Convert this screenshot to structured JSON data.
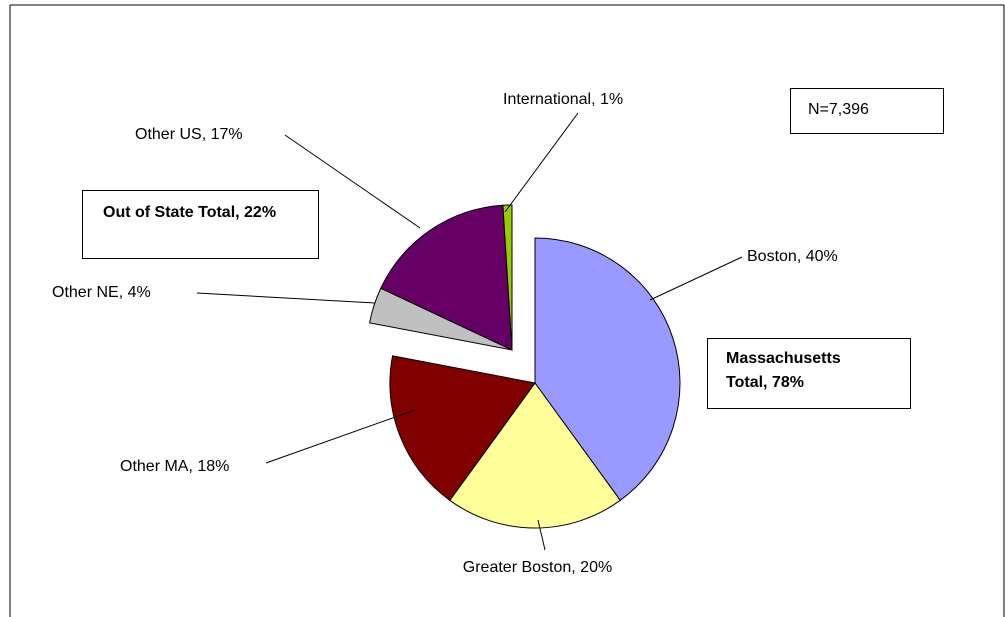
{
  "chart_data": {
    "type": "pie",
    "value_labels": [
      "Boston, 40%",
      "Greater Boston, 20%",
      "Other MA, 18%",
      "Other NE, 4%",
      "Other US, 17%",
      "International, 1%"
    ],
    "values": [
      40,
      20,
      18,
      4,
      17,
      1
    ],
    "colors": [
      "#9999ff",
      "#ffff99",
      "#800000",
      "#c0c0c0",
      "#660066",
      "#99cc00"
    ],
    "exploded": [
      false,
      false,
      false,
      true,
      true,
      true
    ],
    "annotations": [
      {
        "text": "N=7,396"
      },
      {
        "text": "Massachusetts Total, 78%"
      },
      {
        "text": "Out of State Total, 22%"
      }
    ]
  }
}
